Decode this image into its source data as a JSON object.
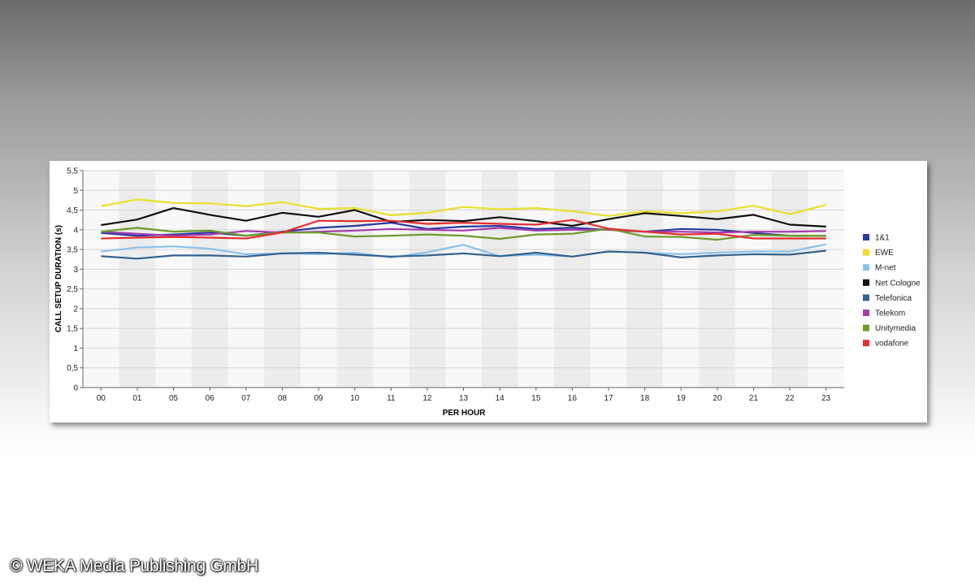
{
  "copyright": "© WEKA Media Publishing GmbH",
  "chart_data": {
    "type": "line",
    "xlabel": "PER HOUR",
    "ylabel": "CALL SETUP DURATION (s)",
    "ylim": [
      0,
      5.5
    ],
    "y_ticks": [
      "0",
      "0,5",
      "1",
      "1,5",
      "2",
      "2,5",
      "3",
      "3,5",
      "4",
      "4,5",
      "5",
      "5,5"
    ],
    "y_tick_values": [
      0,
      0.5,
      1,
      1.5,
      2,
      2.5,
      3,
      3.5,
      4,
      4.5,
      5,
      5.5
    ],
    "categories": [
      "00",
      "01",
      "05",
      "06",
      "07",
      "08",
      "09",
      "10",
      "11",
      "12",
      "13",
      "14",
      "15",
      "16",
      "17",
      "18",
      "19",
      "20",
      "21",
      "22",
      "23"
    ],
    "grid": true,
    "legend_position": "right",
    "series": [
      {
        "name": "1&1",
        "color": "#2b3a9e",
        "values": [
          3.92,
          3.85,
          3.88,
          3.93,
          3.85,
          3.95,
          4.05,
          4.1,
          4.18,
          4.02,
          4.08,
          4.1,
          4.02,
          4.05,
          4.0,
          3.95,
          4.02,
          4.0,
          3.92,
          3.85,
          3.85
        ]
      },
      {
        "name": "EWE",
        "color": "#ecde2a",
        "values": [
          4.6,
          4.77,
          4.68,
          4.67,
          4.6,
          4.7,
          4.53,
          4.55,
          4.37,
          4.43,
          4.58,
          4.52,
          4.55,
          4.47,
          4.35,
          4.47,
          4.42,
          4.47,
          4.61,
          4.4,
          4.63
        ]
      },
      {
        "name": "M-net",
        "color": "#8cc1ea",
        "values": [
          3.45,
          3.55,
          3.58,
          3.52,
          3.38,
          3.4,
          3.38,
          3.42,
          3.3,
          3.43,
          3.62,
          3.33,
          3.37,
          3.32,
          3.45,
          3.42,
          3.38,
          3.42,
          3.45,
          3.45,
          3.63
        ]
      },
      {
        "name": "Net Cologne",
        "color": "#111111",
        "values": [
          4.12,
          4.26,
          4.55,
          4.38,
          4.23,
          4.43,
          4.33,
          4.5,
          4.2,
          4.25,
          4.22,
          4.32,
          4.22,
          4.1,
          4.27,
          4.42,
          4.35,
          4.27,
          4.38,
          4.13,
          4.08
        ]
      },
      {
        "name": "Telefonica",
        "color": "#35628e",
        "values": [
          3.33,
          3.27,
          3.35,
          3.35,
          3.32,
          3.4,
          3.42,
          3.37,
          3.32,
          3.35,
          3.4,
          3.33,
          3.42,
          3.32,
          3.45,
          3.42,
          3.3,
          3.35,
          3.38,
          3.37,
          3.47
        ]
      },
      {
        "name": "Telekom",
        "color": "#a43aac",
        "values": [
          3.95,
          3.9,
          3.85,
          3.88,
          3.97,
          3.93,
          3.95,
          3.98,
          4.02,
          4.0,
          3.98,
          4.05,
          3.98,
          4.0,
          4.0,
          3.95,
          3.95,
          3.93,
          3.95,
          3.95,
          3.97
        ]
      },
      {
        "name": "Unitymedia",
        "color": "#6d9c2a",
        "values": [
          3.95,
          4.05,
          3.95,
          3.98,
          3.85,
          3.93,
          3.93,
          3.83,
          3.85,
          3.88,
          3.85,
          3.77,
          3.88,
          3.9,
          4.03,
          3.83,
          3.82,
          3.75,
          3.87,
          3.85,
          3.85
        ]
      },
      {
        "name": "vodafone",
        "color": "#e23030",
        "values": [
          3.78,
          3.8,
          3.82,
          3.8,
          3.78,
          3.93,
          4.23,
          4.22,
          4.23,
          4.15,
          4.18,
          4.15,
          4.13,
          4.25,
          4.03,
          3.95,
          3.88,
          3.9,
          3.78,
          3.78,
          3.78
        ]
      }
    ]
  }
}
